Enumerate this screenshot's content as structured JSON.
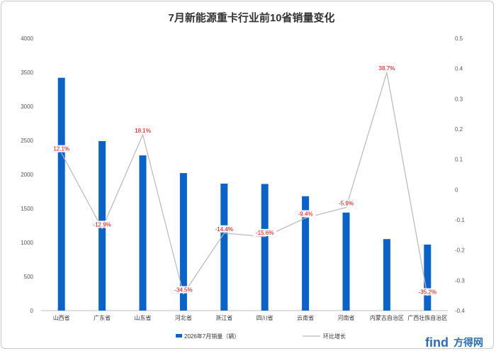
{
  "chart_data": {
    "type": "bar",
    "title": "7月新能源重卡行业前10省销量变化",
    "categories": [
      "山西省",
      "广东省",
      "山东省",
      "河北省",
      "浙江省",
      "四川省",
      "云南省",
      "河南省",
      "内蒙古自治区",
      "广西壮族自治区"
    ],
    "series": [
      {
        "name": "2026年7月销量（辆）",
        "type": "bar",
        "axis": "left",
        "color": "#0a63c8",
        "values": [
          3420,
          2490,
          2280,
          2020,
          1865,
          1860,
          1680,
          1440,
          1050,
          970
        ]
      },
      {
        "name": "环比增长",
        "type": "line",
        "axis": "right",
        "color": "#b8b8b8",
        "values": [
          0.121,
          -0.129,
          0.181,
          -0.345,
          -0.144,
          -0.156,
          -0.094,
          -0.059,
          0.387,
          -0.352
        ],
        "labels": [
          "12.1%",
          "-12.9%",
          "18.1%",
          "-34.5%",
          "-14.4%",
          "-15.6%",
          "-9.4%",
          "-5.9%",
          "38.7%",
          "-35.2%"
        ]
      }
    ],
    "ylim": [
      0,
      4000
    ],
    "yticks": [
      "0",
      "500",
      "1000",
      "1500",
      "2000",
      "2500",
      "3000",
      "3500",
      "4000"
    ],
    "y2lim": [
      -0.4,
      0.5
    ],
    "y2ticks": [
      "-0.4",
      "-0.3",
      "-0.2",
      "-0.1",
      "0",
      "0.1",
      "0.2",
      "0.3",
      "0.4",
      "0.5"
    ],
    "grid": false,
    "legend_position": "bottom"
  },
  "watermark": {
    "logo_text": "find",
    "brand_text": "方得网"
  }
}
